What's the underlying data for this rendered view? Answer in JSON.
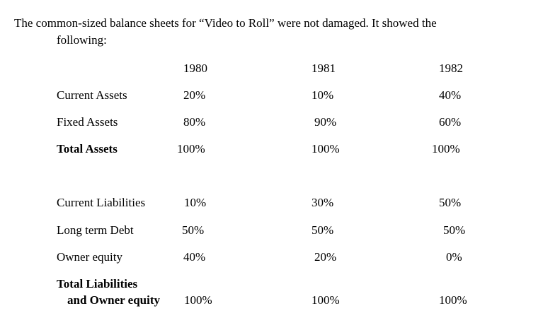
{
  "intro": {
    "line1": "The common-sized balance sheets for “Video to Roll” were not damaged.  It showed the",
    "line2": "following:"
  },
  "years": [
    "1980",
    "1981",
    "1982"
  ],
  "rows": [
    {
      "label": "Current Assets",
      "values": [
        "20%",
        "10%",
        "40%"
      ]
    },
    {
      "label": "Fixed  Assets",
      "values": [
        "80%",
        "90%",
        "60%"
      ]
    },
    {
      "label": "Total Assets",
      "values": [
        "100%",
        "100%",
        "100%"
      ]
    },
    {
      "label": "Current Liabilities",
      "values": [
        "10%",
        "30%",
        "50%"
      ]
    },
    {
      "label": "Long term Debt",
      "values": [
        "50%",
        "50%",
        "50%"
      ]
    },
    {
      "label": "Owner equity",
      "values": [
        "40%",
        "20%",
        "0%"
      ]
    }
  ],
  "total_liab": {
    "label_line1": "Total Liabilities",
    "label_line2": "and Owner equity",
    "values": [
      "100%",
      "100%",
      "100%"
    ]
  }
}
